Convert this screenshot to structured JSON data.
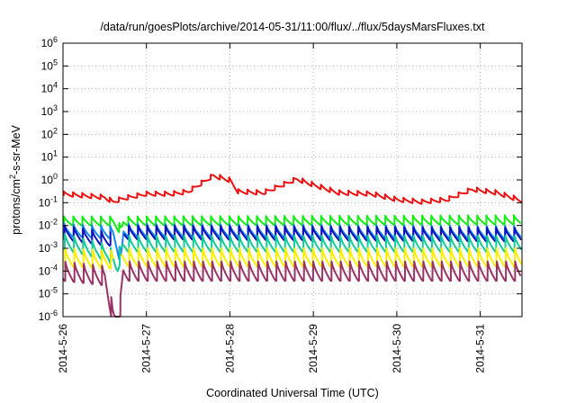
{
  "chart_data": {
    "type": "line",
    "title": "/data/run/goesPlots/archive/2014-05-31/11:00/flux/../flux/5daysMarsFluxes.txt",
    "xlabel": "Coordinated Universal Time (UTC)",
    "ylabel_parts": [
      "protons/cm",
      "2",
      "-s-sr-MeV"
    ],
    "y_scale": "log",
    "ylim_exponents": [
      -6,
      6
    ],
    "y_tick_exponents": [
      -6,
      -5,
      -4,
      -3,
      -2,
      -1,
      0,
      1,
      2,
      3,
      4,
      5,
      6
    ],
    "xlim_days": [
      0,
      5.5
    ],
    "x_ticks": [
      {
        "day": 0,
        "label": "2014-5-26"
      },
      {
        "day": 1,
        "label": "2014-5-27"
      },
      {
        "day": 2,
        "label": "2014-5-28"
      },
      {
        "day": 3,
        "label": "2014-5-29"
      },
      {
        "day": 4,
        "label": "2014-5-30"
      },
      {
        "day": 5,
        "label": "2014-5-31"
      }
    ],
    "grid": true,
    "legend": "none",
    "series": [
      {
        "color": "#ee1111",
        "style": "sawtooth",
        "env": [
          [
            0,
            -0.6
          ],
          [
            0.5,
            -0.75
          ],
          [
            0.6,
            -0.95
          ],
          [
            0.72,
            -0.8
          ],
          [
            1.0,
            -0.6
          ],
          [
            1.3,
            -0.6
          ],
          [
            1.5,
            -0.5
          ],
          [
            1.8,
            0.2
          ],
          [
            2.0,
            0.0
          ],
          [
            2.1,
            -0.5
          ],
          [
            2.4,
            -0.55
          ],
          [
            2.8,
            0.05
          ],
          [
            3.0,
            -0.2
          ],
          [
            3.3,
            -0.55
          ],
          [
            3.7,
            -0.6
          ],
          [
            4.0,
            -0.85
          ],
          [
            4.3,
            -0.95
          ],
          [
            4.6,
            -0.85
          ],
          [
            4.9,
            -0.4
          ],
          [
            5.2,
            -0.55
          ],
          [
            5.5,
            -0.9
          ]
        ],
        "amp": 0.2,
        "period": 0.11,
        "gaps": []
      },
      {
        "color": "#11ee11",
        "style": "sawtooth",
        "env": [
          [
            0,
            -1.8
          ],
          [
            0.6,
            -1.8
          ],
          [
            0.7,
            -2.2
          ],
          [
            0.72,
            -1.8
          ],
          [
            5.5,
            -1.75
          ]
        ],
        "amp": 0.4,
        "period": 0.11,
        "gaps": []
      },
      {
        "color": "#1188ee",
        "style": "sawtooth",
        "env": [
          [
            0,
            -2.2
          ],
          [
            0.6,
            -2.3
          ],
          [
            0.7,
            -3.5
          ],
          [
            0.72,
            -2.2
          ],
          [
            5.5,
            -2.3
          ]
        ],
        "amp": 0.55,
        "period": 0.11,
        "gaps": []
      },
      {
        "color": "#1111bb",
        "style": "sawtooth",
        "env": [
          [
            0,
            -2.3
          ],
          [
            0.55,
            -2.6
          ],
          [
            0.72,
            -2.3
          ],
          [
            5.5,
            -2.4
          ]
        ],
        "amp": 0.6,
        "period": 0.11,
        "gaps": [
          [
            0.58,
            0.72
          ]
        ]
      },
      {
        "color": "#11cc99",
        "style": "sawtooth",
        "env": [
          [
            0,
            -2.7
          ],
          [
            0.55,
            -3.2
          ],
          [
            0.65,
            -3.8
          ],
          [
            0.72,
            -2.8
          ],
          [
            5.5,
            -2.8
          ]
        ],
        "amp": 0.7,
        "period": 0.11,
        "gaps": []
      },
      {
        "color": "#ffee00",
        "style": "sawtooth",
        "env": [
          [
            0,
            -3.4
          ],
          [
            0.6,
            -3.5
          ],
          [
            0.72,
            -3.4
          ],
          [
            5.5,
            -3.4
          ]
        ],
        "amp": 0.8,
        "period": 0.11,
        "gaps": [
          [
            0.62,
            0.7
          ]
        ]
      },
      {
        "color": "#993366",
        "style": "sawtooth",
        "env": [
          [
            0,
            -4.0
          ],
          [
            0.5,
            -4.2
          ],
          [
            0.6,
            -5.95
          ],
          [
            0.65,
            -6.0
          ],
          [
            0.68,
            -5.9
          ],
          [
            0.72,
            -4.0
          ],
          [
            5.5,
            -4.0
          ]
        ],
        "amp": 0.85,
        "period": 0.11,
        "gaps": []
      }
    ]
  }
}
